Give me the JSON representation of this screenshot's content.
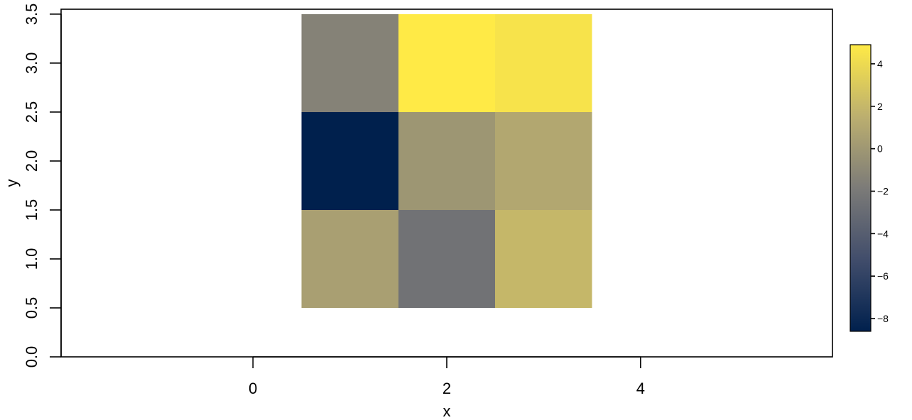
{
  "chart_data": {
    "type": "heatmap",
    "xlabel": "x",
    "ylabel": "y",
    "xlim": [
      -1.98,
      5.98
    ],
    "ylim": [
      0,
      3.55
    ],
    "x_ticks": [
      0,
      2,
      4
    ],
    "x_tick_labels": [
      "0",
      "2",
      "4"
    ],
    "y_ticks": [
      0.0,
      0.5,
      1.0,
      1.5,
      2.0,
      2.5,
      3.0,
      3.5
    ],
    "y_tick_labels": [
      "0.0",
      "0.5",
      "1.0",
      "1.5",
      "2.0",
      "2.5",
      "3.0",
      "3.5"
    ],
    "x": [
      1,
      2,
      3
    ],
    "y": [
      1,
      2,
      3
    ],
    "z": [
      [
        0.5,
        -2.5,
        2.0
      ],
      [
        -8.6,
        -0.1,
        1.0
      ],
      [
        -1.4,
        4.9,
        4.5
      ]
    ],
    "colorbar": {
      "zlim": [
        -8.6,
        4.9
      ],
      "ticks": [
        4,
        2,
        0,
        -2,
        -4,
        -6,
        -8
      ],
      "tick_labels": [
        "4",
        "2",
        "0",
        "−2",
        "−4",
        "−6",
        "−8"
      ],
      "colors": [
        "#00204D",
        "#414D6B",
        "#7C7B78",
        "#BCAF6F",
        "#FFEA46"
      ]
    },
    "grid": false,
    "legend_position": "right"
  }
}
